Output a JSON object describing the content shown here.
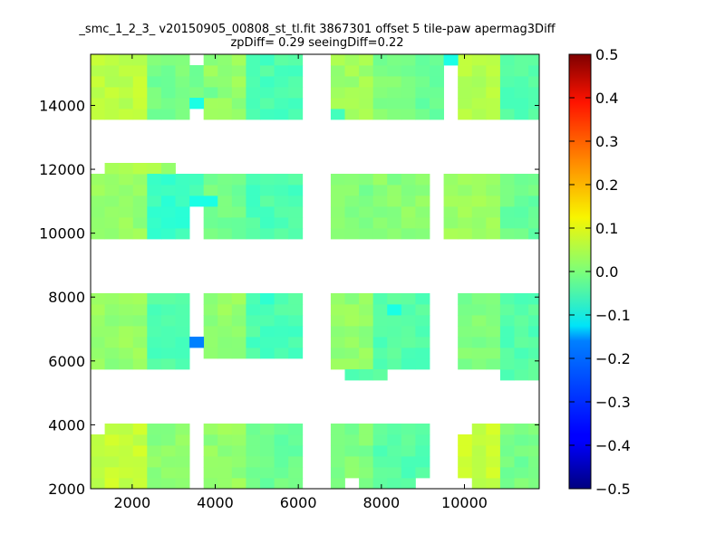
{
  "chart_data": {
    "type": "heatmap",
    "title": "_smc_1_2_3_ v20150905_00808_st_tl.fit 3867301 offset 5 tile-paw apermag3Diff",
    "subtitle": "zpDiff= 0.29 seeingDiff=0.22",
    "xlim": [
      1000,
      11800
    ],
    "ylim": [
      2000,
      15600
    ],
    "x_ticks": [
      2000,
      4000,
      6000,
      8000,
      10000
    ],
    "x_tick_labels": [
      "2000",
      "4000",
      "6000",
      "8000",
      "10000"
    ],
    "y_ticks": [
      2000,
      4000,
      6000,
      8000,
      10000,
      12000,
      14000
    ],
    "y_tick_labels": [
      "2000",
      "4000",
      "6000",
      "8000",
      "10000",
      "12000",
      "14000"
    ],
    "colorbar": {
      "range": [
        -0.5,
        0.5
      ],
      "colormap": "jet",
      "ticks": [
        0.5,
        0.4,
        0.3,
        0.2,
        0.1,
        0.0,
        -0.1,
        -0.2,
        -0.3,
        -0.4,
        -0.5
      ],
      "tick_labels": [
        "0.5",
        "0.4",
        "0.3",
        "0.2",
        "0.1",
        "0.0",
        "−0.1",
        "−0.2",
        "−0.3",
        "−0.4",
        "−0.5"
      ]
    },
    "grid_step": 340,
    "x_origin": 1000,
    "y_origin": 2000,
    "blocks": [
      {
        "x": [
          1000,
          2360
        ],
        "y": [
          13560,
          15600
        ],
        "value": 0.06
      },
      {
        "x": [
          2360,
          3380
        ],
        "y": [
          13560,
          15600
        ],
        "value": -0.01
      },
      {
        "x": [
          3380,
          3720
        ],
        "y": [
          14240,
          15260
        ],
        "value": -0.02
      },
      {
        "x": [
          3720,
          4740
        ],
        "y": [
          13560,
          15600
        ],
        "value": 0.02
      },
      {
        "x": [
          4740,
          6100
        ],
        "y": [
          13560,
          15600
        ],
        "value": -0.05
      },
      {
        "x": [
          6780,
          7800
        ],
        "y": [
          13560,
          15600
        ],
        "value": 0.03
      },
      {
        "x": [
          7800,
          8820
        ],
        "y": [
          13560,
          15600
        ],
        "value": 0.0
      },
      {
        "x": [
          8820,
          9500
        ],
        "y": [
          13560,
          15600
        ],
        "value": -0.03
      },
      {
        "x": [
          9840,
          10860
        ],
        "y": [
          13560,
          15600
        ],
        "value": 0.05
      },
      {
        "x": [
          10860,
          11880
        ],
        "y": [
          13560,
          15600
        ],
        "value": -0.04
      },
      {
        "x": [
          1000,
          2360
        ],
        "y": [
          9820,
          11860
        ],
        "value": 0.02
      },
      {
        "x": [
          1340,
          2700
        ],
        "y": [
          11860,
          12200
        ],
        "value": 0.04
      },
      {
        "x": [
          2360,
          3380
        ],
        "y": [
          9820,
          11860
        ],
        "value": -0.07
      },
      {
        "x": [
          3380,
          3720
        ],
        "y": [
          10840,
          11860
        ],
        "value": -0.05
      },
      {
        "x": [
          3720,
          4740
        ],
        "y": [
          9820,
          11860
        ],
        "value": -0.01
      },
      {
        "x": [
          4740,
          6100
        ],
        "y": [
          9820,
          11860
        ],
        "value": -0.05
      },
      {
        "x": [
          6780,
          7800
        ],
        "y": [
          9820,
          11860
        ],
        "value": 0.0
      },
      {
        "x": [
          7800,
          9160
        ],
        "y": [
          9820,
          11860
        ],
        "value": 0.01
      },
      {
        "x": [
          9500,
          10860
        ],
        "y": [
          9820,
          11860
        ],
        "value": 0.03
      },
      {
        "x": [
          10860,
          11880
        ],
        "y": [
          9820,
          11860
        ],
        "value": -0.02
      },
      {
        "x": [
          1000,
          2360
        ],
        "y": [
          5740,
          8120
        ],
        "value": 0.02
      },
      {
        "x": [
          2360,
          3380
        ],
        "y": [
          5740,
          8120
        ],
        "value": -0.05
      },
      {
        "x": [
          3720,
          4740
        ],
        "y": [
          6080,
          8120
        ],
        "value": 0.02
      },
      {
        "x": [
          4740,
          6100
        ],
        "y": [
          6080,
          8120
        ],
        "value": -0.05
      },
      {
        "x": [
          6780,
          7800
        ],
        "y": [
          5740,
          8120
        ],
        "value": 0.02
      },
      {
        "x": [
          7800,
          9160
        ],
        "y": [
          5740,
          8120
        ],
        "value": -0.04
      },
      {
        "x": [
          7120,
          8140
        ],
        "y": [
          5400,
          5740
        ],
        "value": -0.04
      },
      {
        "x": [
          9840,
          10860
        ],
        "y": [
          5740,
          8120
        ],
        "value": 0.0
      },
      {
        "x": [
          10860,
          11880
        ],
        "y": [
          5400,
          8120
        ],
        "value": -0.04
      },
      {
        "x": [
          1000,
          2360
        ],
        "y": [
          2000,
          4040
        ],
        "value": 0.07
      },
      {
        "x": [
          2360,
          3380
        ],
        "y": [
          2000,
          4040
        ],
        "value": 0.01
      },
      {
        "x": [
          3720,
          4740
        ],
        "y": [
          2000,
          4040
        ],
        "value": 0.02
      },
      {
        "x": [
          4740,
          6100
        ],
        "y": [
          2000,
          4040
        ],
        "value": -0.02
      },
      {
        "x": [
          6780,
          7800
        ],
        "y": [
          2000,
          4040
        ],
        "value": 0.0
      },
      {
        "x": [
          7800,
          9160
        ],
        "y": [
          2000,
          4040
        ],
        "value": -0.04
      },
      {
        "x": [
          9840,
          10860
        ],
        "y": [
          2000,
          4040
        ],
        "value": 0.07
      },
      {
        "x": [
          10860,
          11880
        ],
        "y": [
          2000,
          4040
        ],
        "value": -0.01
      }
    ],
    "cell_overrides": [
      {
        "x": 3380,
        "y": 6420,
        "value": -0.25
      },
      {
        "x": 3380,
        "y": 10840,
        "value": -0.1
      },
      {
        "x": 3380,
        "y": 13900,
        "value": -0.1
      },
      {
        "x": 3720,
        "y": 10840,
        "value": -0.1
      },
      {
        "x": 3720,
        "y": 14240,
        "value": -0.02
      },
      {
        "x": 5080,
        "y": 7780,
        "value": -0.08
      },
      {
        "x": 8140,
        "y": 7440,
        "value": -0.1
      },
      {
        "x": 9500,
        "y": 15260,
        "value": -0.1
      },
      {
        "x": 2700,
        "y": 11860,
        "value": 0.02
      },
      {
        "x": 6780,
        "y": 13560,
        "value": -0.06
      }
    ],
    "holes": [
      {
        "x": [
          3380,
          3720
        ],
        "y": [
          13560,
          13900
        ]
      },
      {
        "x": [
          6100,
          6440
        ],
        "y": [
          9820,
          10160
        ]
      },
      {
        "x": [
          3380,
          3720
        ],
        "y": [
          5740,
          6420
        ]
      },
      {
        "x": [
          3380,
          3720
        ],
        "y": [
          6760,
          8120
        ]
      },
      {
        "x": [
          3720,
          4060
        ],
        "y": [
          5740,
          6080
        ]
      },
      {
        "x": [
          5420,
          6100
        ],
        "y": [
          5740,
          6080
        ]
      },
      {
        "x": [
          3380,
          3720
        ],
        "y": [
          2000,
          4040
        ]
      },
      {
        "x": [
          7120,
          7460
        ],
        "y": [
          2000,
          2340
        ]
      },
      {
        "x": [
          9840,
          10180
        ],
        "y": [
          2000,
          2340
        ]
      },
      {
        "x": [
          8820,
          9160
        ],
        "y": [
          2000,
          2340
        ]
      },
      {
        "x": [
          9840,
          10180
        ],
        "y": [
          4040,
          3700
        ]
      },
      {
        "x": [
          1000,
          1340
        ],
        "y": [
          4040,
          3700
        ]
      }
    ]
  }
}
